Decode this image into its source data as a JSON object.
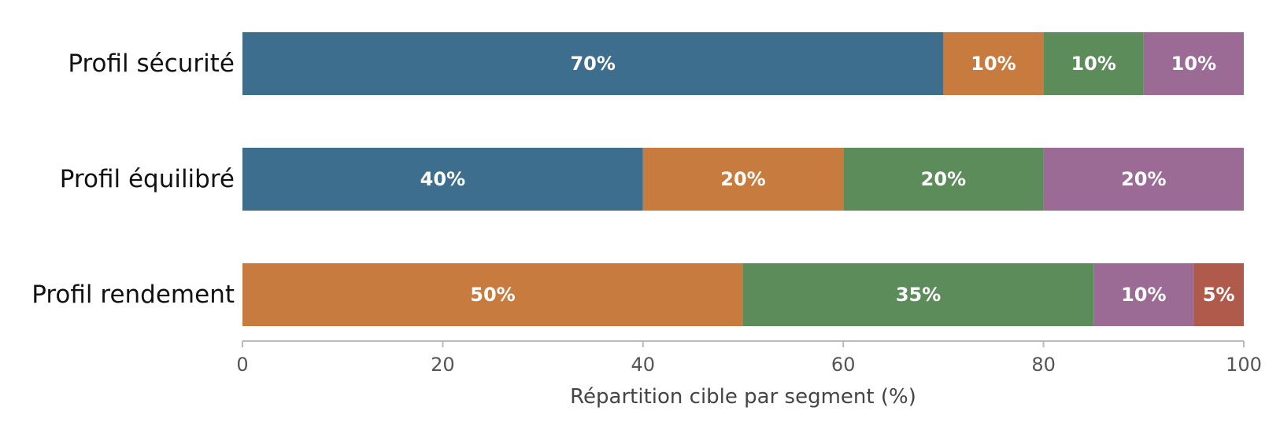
{
  "chart_data": {
    "type": "bar",
    "orientation": "horizontal",
    "stacked": true,
    "categories": [
      "Profil sécurité",
      "Profil équilibré",
      "Profil rendement"
    ],
    "segments": [
      [
        {
          "value": 70,
          "label": "70%",
          "color": "#3d6e8d"
        },
        {
          "value": 10,
          "label": "10%",
          "color": "#c87b3e"
        },
        {
          "value": 10,
          "label": "10%",
          "color": "#5c8c5a"
        },
        {
          "value": 10,
          "label": "10%",
          "color": "#9b6b96"
        }
      ],
      [
        {
          "value": 40,
          "label": "40%",
          "color": "#3d6e8d"
        },
        {
          "value": 20,
          "label": "20%",
          "color": "#c87b3e"
        },
        {
          "value": 20,
          "label": "20%",
          "color": "#5c8c5a"
        },
        {
          "value": 20,
          "label": "20%",
          "color": "#9b6b96"
        }
      ],
      [
        {
          "value": 50,
          "label": "50%",
          "color": "#c87b3e"
        },
        {
          "value": 35,
          "label": "35%",
          "color": "#5c8c5a"
        },
        {
          "value": 10,
          "label": "10%",
          "color": "#9b6b96"
        },
        {
          "value": 5,
          "label": "5%",
          "color": "#b05a4c"
        }
      ]
    ],
    "xlabel": "Répartition cible par segment (%)",
    "ylabel": "",
    "xlim": [
      0,
      100
    ],
    "xticks": [
      "0",
      "20",
      "40",
      "60",
      "80",
      "100"
    ],
    "grid": false,
    "legend": "none"
  }
}
